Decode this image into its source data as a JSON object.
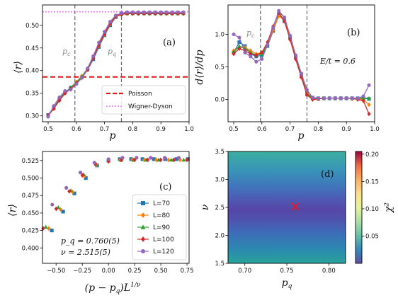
{
  "chart_data": [
    {
      "panel": "(a)",
      "type": "line",
      "xlabel": "p",
      "ylabel": "⟨r⟩",
      "xlim": [
        0.48,
        1.0
      ],
      "ylim": [
        0.287,
        0.545
      ],
      "xticks": [
        0.5,
        0.6,
        0.7,
        0.8,
        0.9,
        1.0
      ],
      "xtick_labels": [
        "0.5",
        "0.6",
        "0.7",
        "0.8",
        "0.9",
        "1.0"
      ],
      "yticks": [
        0.3,
        0.35,
        0.4,
        0.45,
        0.5
      ],
      "ytick_labels": [
        "0.30",
        "0.35",
        "0.40",
        "0.45",
        "0.50"
      ],
      "x": [
        0.5,
        0.52,
        0.54,
        0.56,
        0.58,
        0.6,
        0.62,
        0.64,
        0.66,
        0.68,
        0.7,
        0.72,
        0.74,
        0.76,
        0.78,
        0.8,
        0.82,
        0.84,
        0.86,
        0.88,
        0.9,
        0.92,
        0.94,
        0.96,
        0.98
      ],
      "series": [
        {
          "name": "L=70",
          "color": "#1f77b4",
          "marker": "square",
          "values": [
            0.302,
            0.318,
            0.337,
            0.352,
            0.362,
            0.373,
            0.386,
            0.402,
            0.425,
            0.452,
            0.478,
            0.5,
            0.518,
            0.525,
            0.527,
            0.527,
            0.527,
            0.527,
            0.527,
            0.527,
            0.527,
            0.527,
            0.527,
            0.527,
            0.527
          ]
        },
        {
          "name": "L=80",
          "color": "#ff7f0e",
          "marker": "diamond",
          "values": [
            0.3,
            0.316,
            0.334,
            0.35,
            0.361,
            0.375,
            0.388,
            0.404,
            0.428,
            0.455,
            0.48,
            0.503,
            0.519,
            0.524,
            0.526,
            0.526,
            0.526,
            0.526,
            0.526,
            0.526,
            0.526,
            0.526,
            0.526,
            0.526,
            0.526
          ]
        },
        {
          "name": "L=90",
          "color": "#2ca02c",
          "marker": "triangle",
          "values": [
            0.3,
            0.317,
            0.336,
            0.351,
            0.363,
            0.374,
            0.387,
            0.405,
            0.43,
            0.458,
            0.482,
            0.505,
            0.52,
            0.525,
            0.526,
            0.526,
            0.526,
            0.526,
            0.526,
            0.526,
            0.526,
            0.526,
            0.526,
            0.526,
            0.526
          ]
        },
        {
          "name": "L=100",
          "color": "#d62728",
          "marker": "diamond",
          "values": [
            0.301,
            0.316,
            0.334,
            0.35,
            0.36,
            0.372,
            0.384,
            0.402,
            0.428,
            0.456,
            0.481,
            0.504,
            0.52,
            0.524,
            0.526,
            0.526,
            0.526,
            0.526,
            0.526,
            0.526,
            0.526,
            0.526,
            0.526,
            0.526,
            0.526
          ]
        },
        {
          "name": "L=120",
          "color": "#9467bd",
          "marker": "circle",
          "values": [
            0.298,
            0.322,
            0.341,
            0.355,
            0.358,
            0.37,
            0.384,
            0.405,
            0.432,
            0.462,
            0.486,
            0.508,
            0.522,
            0.527,
            0.529,
            0.529,
            0.529,
            0.529,
            0.529,
            0.529,
            0.529,
            0.529,
            0.529,
            0.529,
            0.529
          ]
        }
      ],
      "reference_lines": [
        {
          "name": "Poisson",
          "value": 0.386,
          "color": "#e41a1c",
          "style": "dashed"
        },
        {
          "name": "Wigner-Dyson",
          "value": 0.53,
          "color": "#ee82ee",
          "style": "dotted"
        }
      ],
      "vlines": [
        0.595,
        0.76
      ],
      "vline_labels": [
        "p_c",
        "p_q"
      ],
      "legend_position": "lower-right"
    },
    {
      "panel": "(b)",
      "type": "line",
      "xlabel": "p",
      "ylabel": "d⟨r⟩/dp",
      "xlim": [
        0.48,
        1.0
      ],
      "ylim": [
        -0.34,
        1.45
      ],
      "xticks": [
        0.5,
        0.6,
        0.7,
        0.8,
        0.9,
        1.0
      ],
      "xtick_labels": [
        "0.5",
        "0.6",
        "0.7",
        "0.8",
        "0.9",
        "1.0"
      ],
      "yticks": [
        0.0,
        0.5,
        1.0
      ],
      "ytick_labels": [
        "0.0",
        "0.5",
        "1.0"
      ],
      "x": [
        0.5,
        0.52,
        0.54,
        0.56,
        0.58,
        0.6,
        0.62,
        0.64,
        0.66,
        0.68,
        0.7,
        0.72,
        0.74,
        0.76,
        0.78,
        0.8,
        0.82,
        0.84,
        0.86,
        0.88,
        0.9,
        0.92,
        0.94,
        0.96,
        0.98
      ],
      "series": [
        {
          "name": "L=70",
          "color": "#1f77b4",
          "marker": "square",
          "values": [
            0.72,
            0.88,
            0.82,
            0.7,
            0.66,
            0.68,
            0.82,
            1.05,
            1.3,
            1.2,
            0.95,
            0.65,
            0.38,
            0.1,
            0.03,
            0.02,
            0.02,
            0.02,
            0.02,
            0.02,
            0.02,
            0.02,
            0.02,
            0.02,
            0.01
          ]
        },
        {
          "name": "L=80",
          "color": "#ff7f0e",
          "marker": "diamond",
          "values": [
            0.75,
            0.8,
            0.8,
            0.75,
            0.7,
            0.72,
            0.84,
            1.06,
            1.28,
            1.22,
            0.96,
            0.66,
            0.37,
            0.09,
            0.02,
            0.01,
            0.02,
            0.02,
            0.02,
            0.02,
            0.02,
            0.01,
            0.01,
            0.0,
            -0.08
          ]
        },
        {
          "name": "L=90",
          "color": "#2ca02c",
          "marker": "triangle",
          "values": [
            0.73,
            0.82,
            0.78,
            0.72,
            0.68,
            0.7,
            0.86,
            1.1,
            1.35,
            1.25,
            0.98,
            0.66,
            0.36,
            0.08,
            0.02,
            0.01,
            0.02,
            0.02,
            0.02,
            0.02,
            0.02,
            0.02,
            0.02,
            0.02,
            0.02
          ]
        },
        {
          "name": "L=100",
          "color": "#d62728",
          "marker": "diamond",
          "values": [
            0.7,
            0.78,
            0.75,
            0.7,
            0.68,
            0.72,
            0.88,
            1.12,
            1.33,
            1.2,
            0.92,
            0.62,
            0.34,
            0.07,
            0.0,
            0.01,
            0.02,
            0.02,
            0.02,
            0.02,
            0.02,
            0.02,
            0.0,
            -0.02,
            -0.22
          ]
        },
        {
          "name": "L=120",
          "color": "#9467bd",
          "marker": "circle",
          "values": [
            1.0,
            0.95,
            0.72,
            0.66,
            0.58,
            0.62,
            0.84,
            1.1,
            1.36,
            1.26,
            0.98,
            0.68,
            0.4,
            0.15,
            0.03,
            0.02,
            0.02,
            0.02,
            0.02,
            0.02,
            0.02,
            0.02,
            0.02,
            0.05,
            0.22
          ]
        }
      ],
      "vlines": [
        0.595,
        0.76
      ],
      "vline_labels": [
        "p_c"
      ],
      "annotation": "E/t = 0.6"
    },
    {
      "panel": "(c)",
      "type": "scatter",
      "xlabel": "(p − p_q)L^(1/ν)",
      "ylabel": "⟨r⟩",
      "xlim": [
        -0.63,
        0.77
      ],
      "ylim": [
        0.378,
        0.538
      ],
      "xticks": [
        -0.5,
        -0.25,
        0.0,
        0.25,
        0.5,
        0.75
      ],
      "xtick_labels": [
        "−0.50",
        "−0.25",
        "0.00",
        "0.25",
        "0.50",
        "0.75"
      ],
      "yticks": [
        0.4,
        0.425,
        0.45,
        0.475,
        0.5,
        0.525
      ],
      "ytick_labels": [
        "0.400",
        "0.425",
        "0.450",
        "0.475",
        "0.500",
        "0.525"
      ],
      "fit_text": [
        "p_q = 0.760(5)",
        "ν = 2.515(5)"
      ],
      "legend": [
        "L=70",
        "L=80",
        "L=90",
        "L=100",
        "L=120"
      ],
      "legend_position": "lower-right"
    },
    {
      "panel": "(d)",
      "type": "heatmap",
      "xlabel": "p_q",
      "ylabel": "ν",
      "colorbar_label": "χ²",
      "xlim": [
        0.68,
        0.82
      ],
      "ylim": [
        1.5,
        3.5
      ],
      "xticks": [
        0.7,
        0.75,
        0.8
      ],
      "xtick_labels": [
        "0.70",
        "0.75",
        "0.80"
      ],
      "yticks": [
        1.5,
        2.0,
        2.5,
        3.0,
        3.5
      ],
      "ytick_labels": [
        "1.5",
        "2.0",
        "2.5",
        "3.0",
        "3.5"
      ],
      "colorbar_ticks": [
        0.05,
        0.1,
        0.15,
        0.2
      ],
      "colorbar_tick_labels": [
        "0.05",
        "0.10",
        "0.15",
        "0.20"
      ],
      "colorbar_range": [
        0.0,
        0.205
      ],
      "minimum_marker": {
        "x": 0.76,
        "y": 2.515,
        "color": "#e41a1c"
      }
    }
  ],
  "labels": {
    "panel_a": "(a)",
    "panel_b": "(b)",
    "panel_c": "(c)",
    "panel_d": "(d)",
    "pc": "p",
    "pc_sub": "c",
    "pq": "p",
    "pq_sub": "q",
    "legend_poisson": "Poisson",
    "legend_wd": "Wigner-Dyson"
  }
}
